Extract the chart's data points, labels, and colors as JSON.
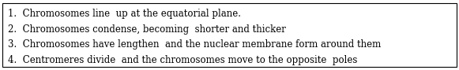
{
  "lines": [
    "1.  Chromosomes line  up at the equatorial plane.",
    "2.  Chromosomes condense, becoming  shorter and thicker",
    "3.  Chromosomes have lengthen  and the nuclear membrane form around them",
    "4.  Centromeres divide  and the chromosomes move to the opposite  poles"
  ],
  "background_color": "#ffffff",
  "border_color": "#000000",
  "text_color": "#000000",
  "font_size": 8.5,
  "font_family": "serif",
  "fig_width": 5.81,
  "fig_height": 0.89,
  "dpi": 100
}
